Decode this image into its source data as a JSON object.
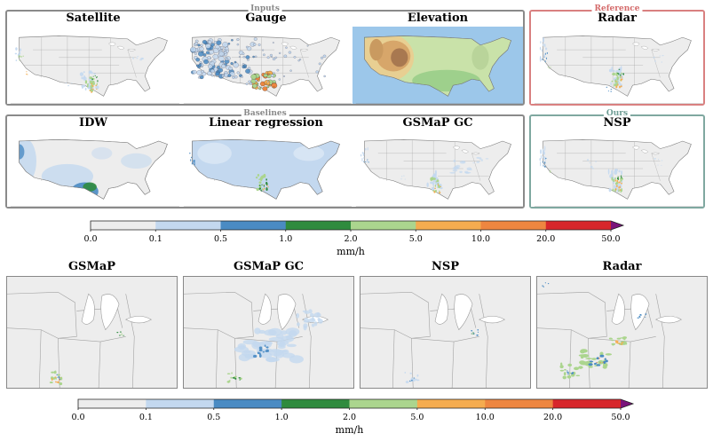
{
  "groups": {
    "inputs": "Inputs",
    "reference": "Reference",
    "baselines": "Baselines",
    "ours": "Ours"
  },
  "top_row": [
    "Satellite",
    "Gauge",
    "Elevation",
    "Radar"
  ],
  "middle_row": [
    "IDW",
    "Linear regression",
    "GSMaP GC",
    "NSP"
  ],
  "bottom_row": [
    "GSMaP",
    "GSMaP GC",
    "NSP",
    "Radar"
  ],
  "colorbar": {
    "ticks": [
      "0.0",
      "0.1",
      "0.5",
      "1.0",
      "2.0",
      "5.0",
      "10.0",
      "20.0",
      "50.0"
    ],
    "unit": "mm/h",
    "colors": [
      "#ededed",
      "#c3d8ef",
      "#4a8bc3",
      "#2f8b3e",
      "#abd58e",
      "#f5ac4f",
      "#ee8640",
      "#d7262b",
      "#7a137a"
    ]
  },
  "colors": {
    "inputs_border": "#8a8a8a",
    "reference_border": "#d98080",
    "ours_border": "#7fa8a0",
    "map_background": "#ededed",
    "ocean": "#ffffff",
    "state_lines": "#9a9a9a"
  }
}
